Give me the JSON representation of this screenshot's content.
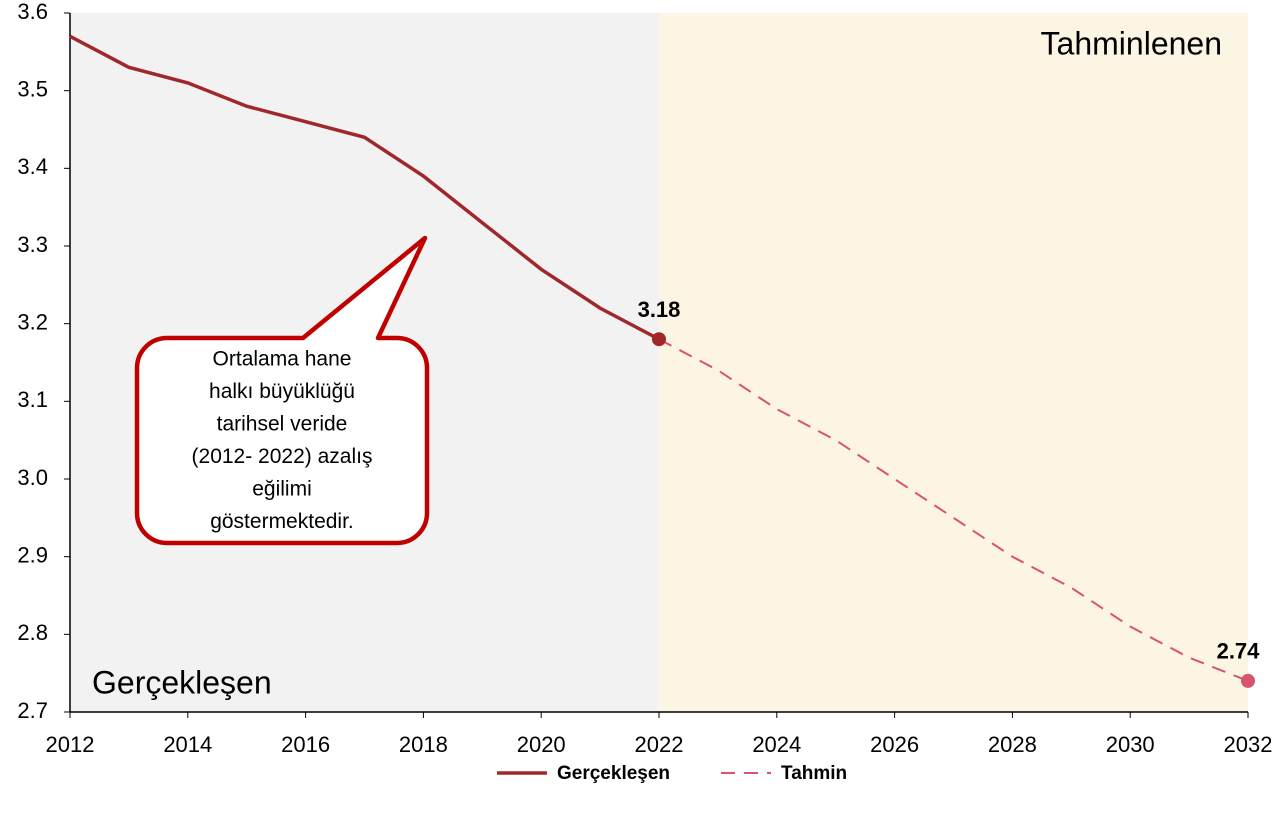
{
  "chart_data": {
    "type": "line",
    "x": [
      2012,
      2013,
      2014,
      2015,
      2016,
      2017,
      2018,
      2019,
      2020,
      2021,
      2022,
      2023,
      2024,
      2025,
      2026,
      2027,
      2028,
      2029,
      2030,
      2031,
      2032
    ],
    "series": [
      {
        "name": "Gerçekleşen",
        "color": "#a0282b",
        "dash": false,
        "values": [
          3.57,
          3.53,
          3.51,
          3.48,
          3.46,
          3.44,
          3.39,
          3.33,
          3.27,
          3.22,
          3.18,
          null,
          null,
          null,
          null,
          null,
          null,
          null,
          null,
          null,
          null
        ]
      },
      {
        "name": "Tahmin",
        "color": "#d9536f",
        "dash": true,
        "values": [
          null,
          null,
          null,
          null,
          null,
          null,
          null,
          null,
          null,
          null,
          3.18,
          3.14,
          3.09,
          3.05,
          3.0,
          2.95,
          2.9,
          2.86,
          2.81,
          2.77,
          2.74
        ]
      }
    ],
    "labeled_points": [
      {
        "series": 0,
        "index": 10
      },
      {
        "series": 1,
        "index": 20
      }
    ],
    "regions": [
      {
        "label": "Gerçekleşen",
        "from": 2012,
        "to": 2022,
        "color": "#f2f2f2"
      },
      {
        "label": "Tahminlenen",
        "from": 2022,
        "to": 2032,
        "color": "#fdf5e4"
      }
    ],
    "annotation": [
      "Ortalama hane",
      "halkı  büyüklüğü",
      "tarihsel veride",
      "(2012- 2022) azalış",
      "eğilimi",
      "göstermektedir."
    ],
    "xlim": [
      2012,
      2032
    ],
    "xticks": [
      2012,
      2014,
      2016,
      2018,
      2020,
      2022,
      2024,
      2026,
      2028,
      2030,
      2032
    ],
    "ylim": [
      2.7,
      3.6
    ],
    "yticks": [
      {
        "value": 2.7,
        "label": "2.7"
      },
      2.8,
      2.9,
      {
        "value": 3.0,
        "label": "3.0"
      },
      3.1,
      3.2,
      3.3,
      3.4,
      3.5,
      3.6
    ],
    "legend": "bottom"
  }
}
